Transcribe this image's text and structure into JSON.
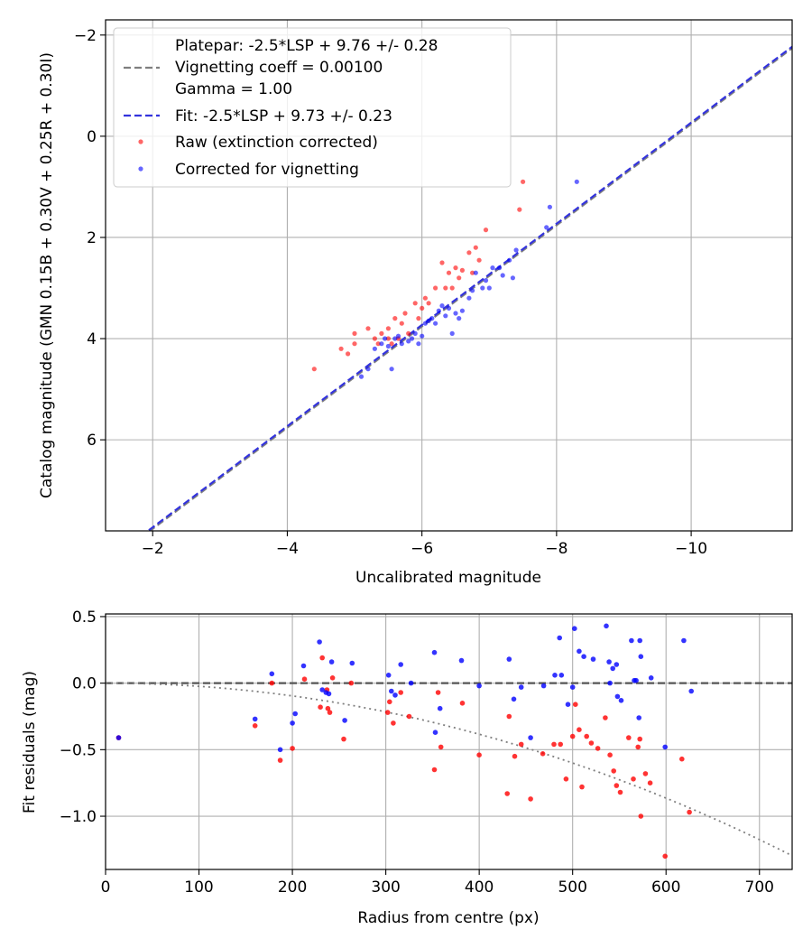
{
  "chart_data": [
    {
      "type": "scatter",
      "xlabel": "Uncalibrated magnitude",
      "ylabel": "Catalog magnitude (GMN 0.15B + 0.30V + 0.25R + 0.30I)",
      "xlim": [
        -1.3,
        -11.5
      ],
      "ylim": [
        7.8,
        -2.3
      ],
      "x_inverted": true,
      "y_inverted": true,
      "grid": true,
      "legend_placement": "top-left",
      "x_ticks": [
        -2,
        -4,
        -6,
        -8,
        -10
      ],
      "x_tick_labels": [
        "−2",
        "−4",
        "−6",
        "−8",
        "−10"
      ],
      "y_ticks": [
        -2,
        0,
        2,
        4,
        6
      ],
      "y_tick_labels": [
        "−2",
        "0",
        "2",
        "4",
        "6"
      ],
      "legend": {
        "platepar_line1": "Platepar: -2.5*LSP + 9.76 +/- 0.28",
        "platepar_line2": "Vignetting coeff = 0.00100",
        "platepar_line3": "Gamma = 1.00",
        "fit_label": "Fit: -2.5*LSP + 9.73 +/- 0.23",
        "raw_label": "Raw (extinction corrected)",
        "corrected_label": "Corrected for vignetting"
      },
      "lines": [
        {
          "name": "Platepar",
          "slope": 1.0,
          "intercept": 9.76,
          "color": "#7f7f7f",
          "style": "dashed"
        },
        {
          "name": "Fit",
          "slope": 1.0,
          "intercept": 9.73,
          "color": "#3333dd",
          "style": "dashed"
        }
      ],
      "series": [
        {
          "name": "Raw (extinction corrected)",
          "color": "#ff0000",
          "points": [
            [
              -4.4,
              4.6
            ],
            [
              -4.8,
              4.2
            ],
            [
              -4.9,
              4.3
            ],
            [
              -5.0,
              3.9
            ],
            [
              -5.0,
              4.1
            ],
            [
              -5.2,
              3.8
            ],
            [
              -5.3,
              4.0
            ],
            [
              -5.35,
              4.1
            ],
            [
              -5.4,
              3.9
            ],
            [
              -5.5,
              3.8
            ],
            [
              -5.5,
              4.0
            ],
            [
              -5.55,
              4.1
            ],
            [
              -5.6,
              3.6
            ],
            [
              -5.65,
              4.0
            ],
            [
              -5.7,
              3.7
            ],
            [
              -5.75,
              3.5
            ],
            [
              -5.8,
              3.9
            ],
            [
              -5.9,
              3.3
            ],
            [
              -5.95,
              3.6
            ],
            [
              -6.0,
              3.4
            ],
            [
              -6.05,
              3.2
            ],
            [
              -6.1,
              3.3
            ],
            [
              -6.2,
              3.0
            ],
            [
              -6.3,
              2.5
            ],
            [
              -6.35,
              3.0
            ],
            [
              -6.4,
              2.7
            ],
            [
              -6.45,
              3.0
            ],
            [
              -6.5,
              2.6
            ],
            [
              -6.55,
              2.8
            ],
            [
              -6.6,
              2.65
            ],
            [
              -6.7,
              2.3
            ],
            [
              -6.75,
              2.7
            ],
            [
              -6.8,
              2.2
            ],
            [
              -6.85,
              2.45
            ],
            [
              -6.95,
              1.85
            ],
            [
              -7.45,
              1.45
            ],
            [
              -7.5,
              0.9
            ]
          ]
        },
        {
          "name": "Corrected for vignetting",
          "color": "#0000ff",
          "points": [
            [
              -5.1,
              4.75
            ],
            [
              -5.2,
              4.6
            ],
            [
              -5.3,
              4.2
            ],
            [
              -5.4,
              4.1
            ],
            [
              -5.45,
              4.0
            ],
            [
              -5.5,
              4.15
            ],
            [
              -5.55,
              4.6
            ],
            [
              -5.6,
              4.0
            ],
            [
              -5.65,
              3.95
            ],
            [
              -5.7,
              4.1
            ],
            [
              -5.8,
              4.05
            ],
            [
              -5.85,
              4.0
            ],
            [
              -5.9,
              3.9
            ],
            [
              -5.95,
              4.1
            ],
            [
              -6.0,
              3.95
            ],
            [
              -6.05,
              3.7
            ],
            [
              -6.1,
              3.65
            ],
            [
              -6.15,
              3.6
            ],
            [
              -6.2,
              3.7
            ],
            [
              -6.25,
              3.45
            ],
            [
              -6.3,
              3.35
            ],
            [
              -6.35,
              3.55
            ],
            [
              -6.4,
              3.4
            ],
            [
              -6.45,
              3.9
            ],
            [
              -6.5,
              3.5
            ],
            [
              -6.55,
              3.6
            ],
            [
              -6.6,
              3.45
            ],
            [
              -6.7,
              3.2
            ],
            [
              -6.75,
              3.05
            ],
            [
              -6.8,
              2.7
            ],
            [
              -6.9,
              3.0
            ],
            [
              -6.95,
              2.85
            ],
            [
              -7.0,
              3.0
            ],
            [
              -7.05,
              2.6
            ],
            [
              -7.15,
              2.6
            ],
            [
              -7.2,
              2.75
            ],
            [
              -7.3,
              2.45
            ],
            [
              -7.35,
              2.8
            ],
            [
              -7.4,
              2.25
            ],
            [
              -7.9,
              1.4
            ],
            [
              -8.3,
              0.9
            ],
            [
              -7.85,
              1.8
            ]
          ]
        }
      ]
    },
    {
      "type": "scatter",
      "xlabel": "Radius from centre (px)",
      "ylabel": "Fit residuals (mag)",
      "xlim": [
        0,
        735
      ],
      "ylim": [
        -1.4,
        0.52
      ],
      "grid": true,
      "x_ticks": [
        0,
        100,
        200,
        300,
        400,
        500,
        600,
        700
      ],
      "x_tick_labels": [
        "0",
        "100",
        "200",
        "300",
        "400",
        "500",
        "600",
        "700"
      ],
      "y_ticks": [
        0.5,
        0.0,
        -0.5,
        -1.0
      ],
      "y_tick_labels": [
        "0.5",
        "0.0",
        "−0.5",
        "−1.0"
      ],
      "lines": [
        {
          "name": "Zero line",
          "type": "hline",
          "y": 0.0,
          "color": "#555555",
          "style": "dashed"
        },
        {
          "name": "Vignetting curve",
          "type": "curve",
          "coefficient": -0.0024,
          "color": "#7f7f7f",
          "style": "dotted"
        }
      ],
      "series": [
        {
          "name": "Raw",
          "color": "#ff0000",
          "points": [
            [
              14,
              -0.41
            ],
            [
              160,
              -0.32
            ],
            [
              178,
              0.0
            ],
            [
              187,
              -0.58
            ],
            [
              200,
              -0.49
            ],
            [
              213,
              0.03
            ],
            [
              230,
              -0.18
            ],
            [
              232,
              0.19
            ],
            [
              237,
              -0.05
            ],
            [
              238,
              -0.19
            ],
            [
              240,
              -0.22
            ],
            [
              243,
              0.04
            ],
            [
              255,
              -0.42
            ],
            [
              263,
              0.0
            ],
            [
              302,
              -0.22
            ],
            [
              304,
              -0.14
            ],
            [
              308,
              -0.3
            ],
            [
              316,
              -0.07
            ],
            [
              325,
              -0.25
            ],
            [
              352,
              -0.65
            ],
            [
              356,
              -0.07
            ],
            [
              359,
              -0.48
            ],
            [
              382,
              -0.15
            ],
            [
              400,
              -0.54
            ],
            [
              430,
              -0.83
            ],
            [
              432,
              -0.25
            ],
            [
              438,
              -0.55
            ],
            [
              445,
              -0.46
            ],
            [
              455,
              -0.87
            ],
            [
              468,
              -0.53
            ],
            [
              480,
              -0.46
            ],
            [
              487,
              -0.46
            ],
            [
              493,
              -0.72
            ],
            [
              500,
              -0.4
            ],
            [
              503,
              -0.16
            ],
            [
              507,
              -0.35
            ],
            [
              510,
              -0.78
            ],
            [
              515,
              -0.4
            ],
            [
              520,
              -0.45
            ],
            [
              527,
              -0.49
            ],
            [
              535,
              -0.26
            ],
            [
              540,
              -0.54
            ],
            [
              544,
              -0.66
            ],
            [
              547,
              -0.77
            ],
            [
              551,
              -0.82
            ],
            [
              560,
              -0.41
            ],
            [
              565,
              -0.72
            ],
            [
              570,
              -0.48
            ],
            [
              572,
              -0.42
            ],
            [
              573,
              -1.0
            ],
            [
              578,
              -0.68
            ],
            [
              583,
              -0.75
            ],
            [
              599,
              -1.3
            ],
            [
              617,
              -0.57
            ],
            [
              625,
              -0.97
            ]
          ]
        },
        {
          "name": "Corrected",
          "color": "#0000ff",
          "points": [
            [
              14,
              -0.41
            ],
            [
              160,
              -0.27
            ],
            [
              178,
              0.07
            ],
            [
              187,
              -0.5
            ],
            [
              200,
              -0.3
            ],
            [
              203,
              -0.23
            ],
            [
              212,
              0.13
            ],
            [
              229,
              0.31
            ],
            [
              232,
              -0.05
            ],
            [
              236,
              -0.07
            ],
            [
              239,
              -0.08
            ],
            [
              242,
              0.16
            ],
            [
              256,
              -0.28
            ],
            [
              264,
              0.15
            ],
            [
              303,
              0.06
            ],
            [
              306,
              -0.06
            ],
            [
              310,
              -0.09
            ],
            [
              316,
              0.14
            ],
            [
              327,
              0.0
            ],
            [
              352,
              0.23
            ],
            [
              353,
              -0.37
            ],
            [
              358,
              -0.19
            ],
            [
              381,
              0.17
            ],
            [
              400,
              -0.02
            ],
            [
              432,
              0.18
            ],
            [
              437,
              -0.12
            ],
            [
              445,
              -0.03
            ],
            [
              455,
              -0.41
            ],
            [
              469,
              -0.02
            ],
            [
              481,
              0.06
            ],
            [
              486,
              0.34
            ],
            [
              488,
              0.06
            ],
            [
              495,
              -0.16
            ],
            [
              500,
              -0.03
            ],
            [
              502,
              0.41
            ],
            [
              507,
              0.24
            ],
            [
              512,
              0.2
            ],
            [
              522,
              0.18
            ],
            [
              536,
              0.43
            ],
            [
              539,
              0.16
            ],
            [
              540,
              0.0
            ],
            [
              543,
              0.11
            ],
            [
              547,
              0.14
            ],
            [
              548,
              -0.1
            ],
            [
              552,
              -0.13
            ],
            [
              563,
              0.32
            ],
            [
              566,
              0.02
            ],
            [
              568,
              0.02
            ],
            [
              571,
              -0.26
            ],
            [
              572,
              0.32
            ],
            [
              573,
              0.2
            ],
            [
              584,
              0.04
            ],
            [
              599,
              -0.48
            ],
            [
              619,
              0.32
            ],
            [
              627,
              -0.06
            ]
          ]
        }
      ]
    }
  ]
}
